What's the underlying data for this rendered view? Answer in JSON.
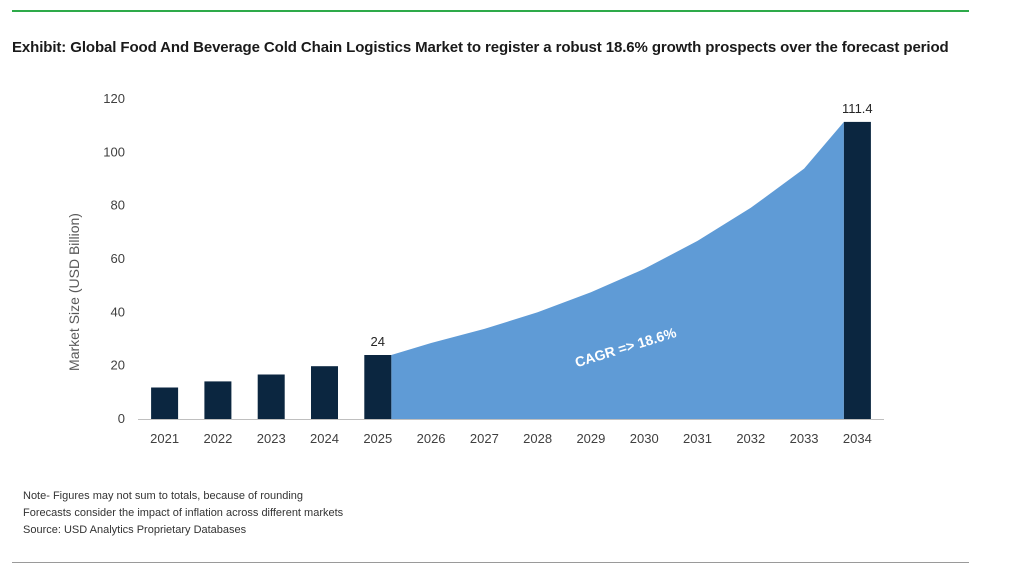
{
  "title": "Exhibit: Global Food And Beverage Cold Chain Logistics Market to register a robust 18.6% growth prospects over the forecast period",
  "notes": [
    "Note- Figures may not sum to totals, because of rounding",
    "Forecasts consider the impact of inflation across different markets",
    "Source: USD Analytics Proprietary Databases"
  ],
  "colors": {
    "bar": "#0b2640",
    "area": "#5f9bd6",
    "top_rule": "#2eaa4a",
    "axis": "#bfbfbf"
  },
  "chart_data": {
    "type": "bar",
    "categories": [
      "2021",
      "2022",
      "2023",
      "2024",
      "2025",
      "2026",
      "2027",
      "2028",
      "2029",
      "2030",
      "2031",
      "2032",
      "2033",
      "2034"
    ],
    "bar_values": [
      11.8,
      14.1,
      16.7,
      19.8,
      24,
      null,
      null,
      null,
      null,
      null,
      null,
      null,
      null,
      111.4
    ],
    "area_values": [
      null,
      null,
      null,
      null,
      24,
      28.5,
      33.8,
      40.0,
      47.5,
      56.3,
      66.8,
      79.2,
      93.9,
      111.4
    ],
    "data_labels": [
      {
        "category": "2025",
        "text": "24"
      },
      {
        "category": "2034",
        "text": "111.4"
      }
    ],
    "annotation": "CAGR => 18.6%",
    "ylabel": "Market Size (USD Billion)",
    "xlabel": "",
    "ylim": [
      0,
      120
    ],
    "yticks": [
      0,
      20,
      40,
      60,
      80,
      100,
      120
    ],
    "grid": false
  }
}
